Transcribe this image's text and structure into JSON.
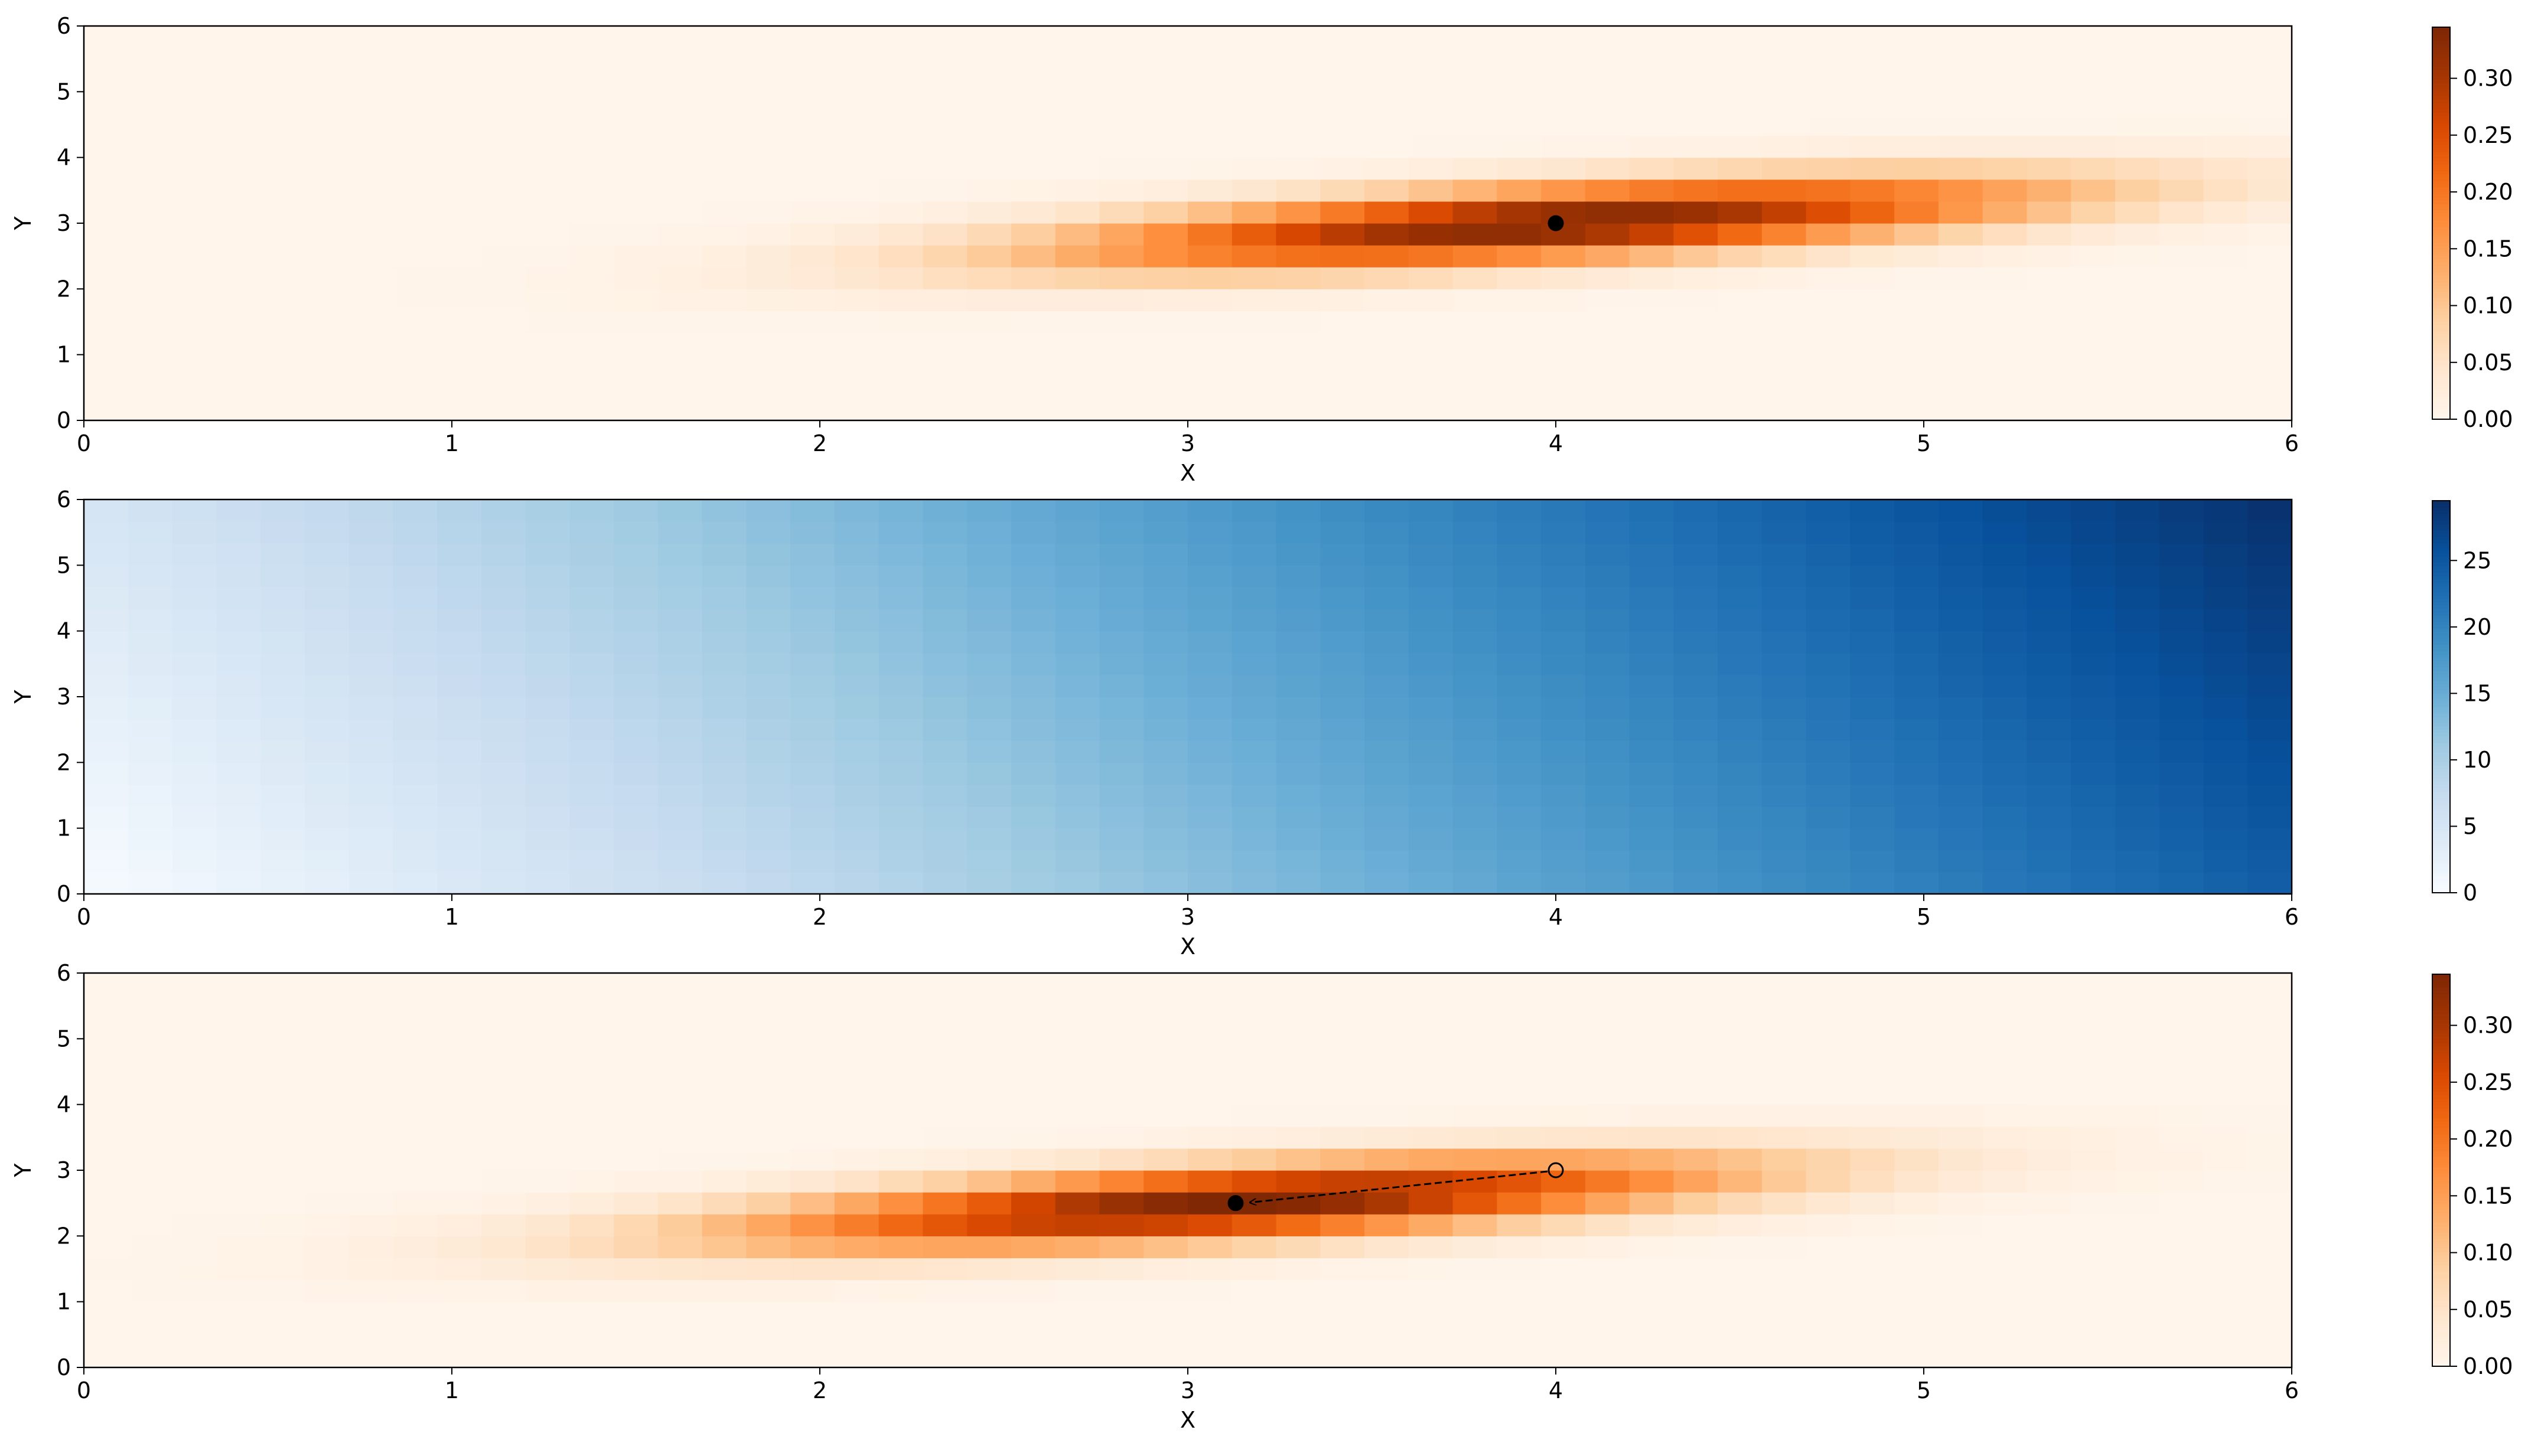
{
  "chart_data": [
    {
      "type": "heatmap",
      "colormap": "Oranges",
      "xlabel": "X",
      "ylabel": "Y",
      "xlim": [
        0,
        6
      ],
      "ylim": [
        0,
        6
      ],
      "xticks": [
        "0",
        "1",
        "2",
        "3",
        "4",
        "5",
        "6"
      ],
      "yticks": [
        "0",
        "1",
        "2",
        "3",
        "4",
        "5",
        "6"
      ],
      "grid": false,
      "field": {
        "kind": "gaussian",
        "center": [
          4.0,
          3.0
        ],
        "sigma_x": 0.95,
        "sigma_y": 0.5,
        "rho": 0.6,
        "peak": 0.345
      },
      "markers": [
        {
          "x": 4.0,
          "y": 3.0,
          "style": "filled-circle",
          "color": "#000000"
        }
      ],
      "colorbar": {
        "vmin": 0.0,
        "vmax": 0.345,
        "ticks": [
          "0.00",
          "0.05",
          "0.10",
          "0.15",
          "0.20",
          "0.25",
          "0.30"
        ]
      }
    },
    {
      "type": "heatmap",
      "colormap": "Blues",
      "xlabel": "X",
      "ylabel": "Y",
      "xlim": [
        0,
        6
      ],
      "ylim": [
        0,
        6
      ],
      "xticks": [
        "0",
        "1",
        "2",
        "3",
        "4",
        "5",
        "6"
      ],
      "yticks": [
        "0",
        "1",
        "2",
        "3",
        "4",
        "5",
        "6"
      ],
      "grid": false,
      "field": {
        "kind": "linear",
        "value_at_origin": 0,
        "value_at_max_corner": 29.5,
        "x_weight": 0.83,
        "y_weight": 0.17
      },
      "markers": [],
      "colorbar": {
        "vmin": 0,
        "vmax": 29.5,
        "ticks": [
          "0",
          "5",
          "10",
          "15",
          "20",
          "25"
        ]
      }
    },
    {
      "type": "heatmap",
      "colormap": "Oranges",
      "xlabel": "X",
      "ylabel": "Y",
      "xlim": [
        0,
        6
      ],
      "ylim": [
        0,
        6
      ],
      "xticks": [
        "0",
        "1",
        "2",
        "3",
        "4",
        "5",
        "6"
      ],
      "yticks": [
        "0",
        "1",
        "2",
        "3",
        "4",
        "5",
        "6"
      ],
      "grid": false,
      "field": {
        "kind": "gaussian",
        "center": [
          3.13,
          2.5
        ],
        "sigma_x": 0.95,
        "sigma_y": 0.5,
        "rho": 0.6,
        "peak": 0.345
      },
      "markers": [
        {
          "x": 4.0,
          "y": 3.0,
          "style": "open-circle",
          "color": "#000000"
        },
        {
          "x": 3.13,
          "y": 2.5,
          "style": "filled-circle",
          "color": "#000000"
        }
      ],
      "arrow": {
        "from": [
          4.0,
          3.0
        ],
        "to": [
          3.13,
          2.5
        ],
        "style": "dashed",
        "color": "#000000"
      },
      "colorbar": {
        "vmin": 0.0,
        "vmax": 0.345,
        "ticks": [
          "0.00",
          "0.05",
          "0.10",
          "0.15",
          "0.20",
          "0.25",
          "0.30"
        ]
      }
    }
  ]
}
